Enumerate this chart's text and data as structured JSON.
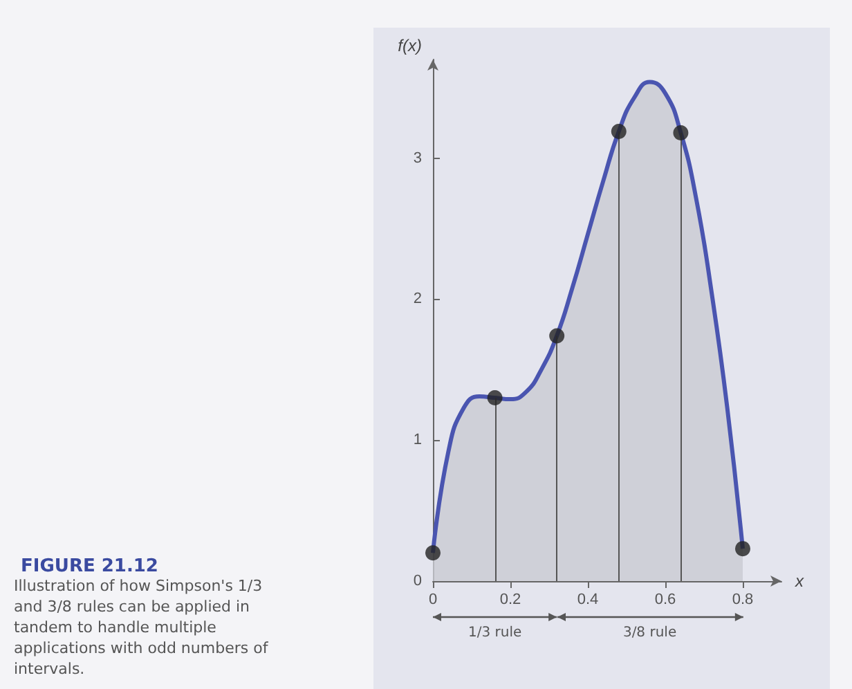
{
  "chart_data": {
    "type": "area",
    "title": "FIGURE 21.12",
    "xlabel": "x",
    "ylabel": "f(x)",
    "annotations": [
      "Illustration of how Simpson's 1/3 and 3/8 rules can be applied in tandem to handle multiple applications with odd numbers of intervals.",
      "1/3 rule",
      "3/8 rule"
    ],
    "xlim": [
      0,
      0.9
    ],
    "xticks": [
      0,
      0.2,
      0.4,
      0.6,
      0.8
    ],
    "ylim": [
      0,
      3.7
    ],
    "yticks": [
      0,
      1,
      2,
      3
    ],
    "grid": false,
    "series": [
      {
        "color": "#4a55b0",
        "x": [
          0,
          0.04,
          0.08,
          0.12,
          0.16,
          0.2,
          0.24,
          0.28,
          0.32,
          0.36,
          0.4,
          0.44,
          0.48,
          0.52,
          0.56,
          0.6,
          0.64,
          0.68,
          0.72,
          0.76,
          0.8
        ],
        "values": [
          0.2,
          0.92,
          1.23,
          1.31,
          1.3,
          1.29,
          1.34,
          1.5,
          1.74,
          2.08,
          2.46,
          2.84,
          3.19,
          3.43,
          3.54,
          3.46,
          3.18,
          2.71,
          2.04,
          1.23,
          0.23
        ]
      },
      {
        "type": "scatter",
        "color": "#222222",
        "marker": "circle",
        "x": [
          0,
          0.16,
          0.32,
          0.48,
          0.64,
          0.8
        ],
        "values": [
          0.2,
          1.3,
          1.74,
          3.19,
          3.18,
          0.23
        ]
      }
    ],
    "ref_lines": [
      {
        "axis": "x",
        "value": 0.16,
        "color": "#555555"
      },
      {
        "axis": "x",
        "value": 0.32,
        "color": "#555555"
      },
      {
        "axis": "x",
        "value": 0.48,
        "color": "#555555"
      },
      {
        "axis": "x",
        "value": 0.64,
        "color": "#555555"
      }
    ]
  }
}
